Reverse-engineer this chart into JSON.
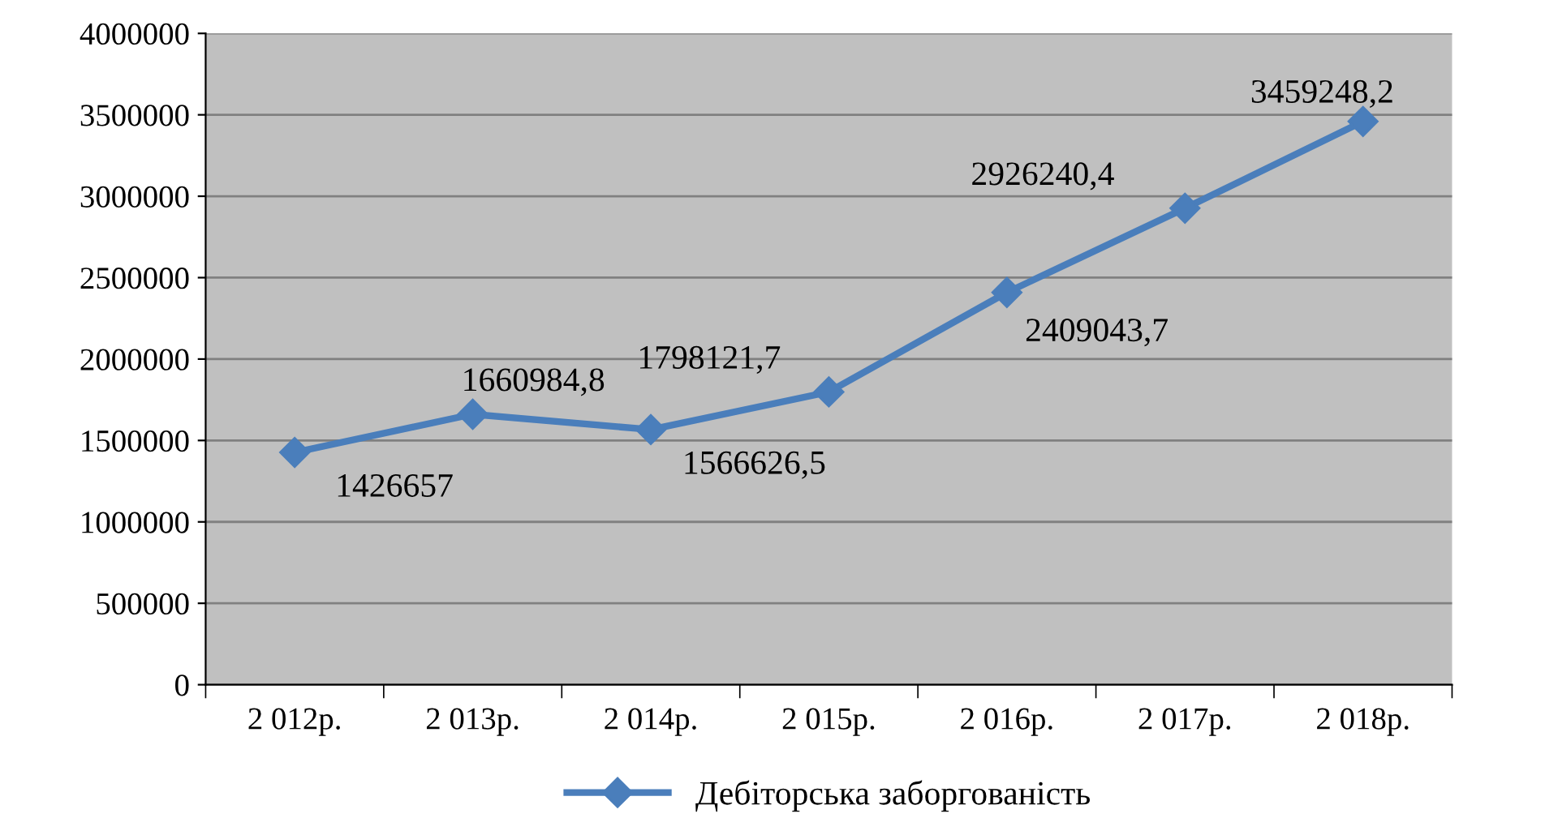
{
  "chart_data": {
    "type": "line",
    "categories": [
      "2 012р.",
      "2 013р.",
      "2 014р.",
      "2 015р.",
      "2 016р.",
      "2 017р.",
      "2 018р."
    ],
    "series": [
      {
        "name": "Дебіторська заборгованість",
        "color": "#4a7ebb",
        "values": [
          1426657,
          1660984.8,
          1566626.5,
          1798121.7,
          2409043.7,
          2926240.4,
          3459248.2
        ],
        "value_labels": [
          "1426657",
          "1660984,8",
          "1566626,5",
          "1798121,7",
          "2409043,7",
          "2926240,4",
          "3459248,2"
        ]
      }
    ],
    "ylim": [
      0,
      4000000
    ],
    "yticks": [
      0,
      500000,
      1000000,
      1500000,
      2000000,
      2500000,
      3000000,
      3500000,
      4000000
    ],
    "grid": "y",
    "legend": "bottom",
    "marker": "diamond",
    "line_style": "solid"
  }
}
